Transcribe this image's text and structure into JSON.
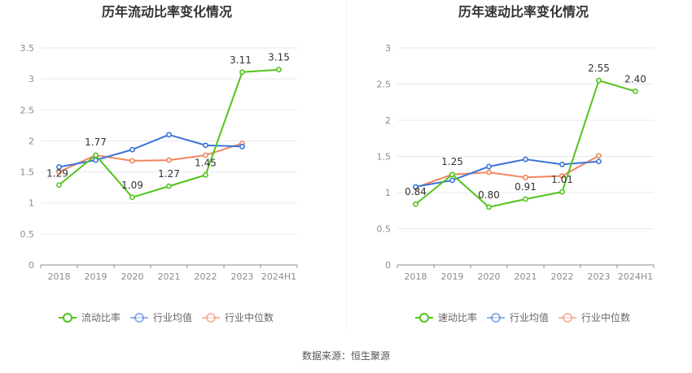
{
  "source_label": "数据来源：恒生聚源",
  "colors": {
    "main": "#52c41a",
    "avg": "#3b73d9",
    "median": "#f0865c",
    "grid": "#e6e9ef",
    "axis": "#8c8c8c"
  },
  "chart_data": [
    {
      "type": "line",
      "title": "历年流动比率变化情况",
      "categories": [
        "2018",
        "2019",
        "2020",
        "2021",
        "2022",
        "2023",
        "2024H1"
      ],
      "ylim": [
        0,
        3.5
      ],
      "yticks": [
        "0",
        "0.5",
        "1",
        "1.5",
        "2",
        "2.5",
        "3",
        "3.5"
      ],
      "grid": true,
      "legend_position": "bottom",
      "series": [
        {
          "name": "流动比率",
          "key": "main",
          "values": [
            1.29,
            1.77,
            1.09,
            1.27,
            1.45,
            3.11,
            3.15
          ],
          "labels": [
            "1.29",
            "1.77",
            "1.09",
            "1.27",
            "1.45",
            "3.11",
            "3.15"
          ]
        },
        {
          "name": "行业均值",
          "key": "avg",
          "values": [
            1.58,
            1.69,
            1.86,
            2.1,
            1.93,
            1.91,
            null
          ]
        },
        {
          "name": "行业中位数",
          "key": "median",
          "values": [
            1.5,
            1.77,
            1.68,
            1.69,
            1.77,
            1.96,
            null
          ]
        }
      ]
    },
    {
      "type": "line",
      "title": "历年速动比率变化情况",
      "categories": [
        "2018",
        "2019",
        "2020",
        "2021",
        "2022",
        "2023",
        "2024H1"
      ],
      "ylim": [
        0,
        3
      ],
      "yticks": [
        "0",
        "0.5",
        "1",
        "1.5",
        "2",
        "2.5",
        "3"
      ],
      "grid": true,
      "legend_position": "bottom",
      "series": [
        {
          "name": "速动比率",
          "key": "main",
          "values": [
            0.84,
            1.25,
            0.8,
            0.91,
            1.01,
            2.55,
            2.4
          ],
          "labels": [
            "0.84",
            "1.25",
            "0.80",
            "0.91",
            "1.01",
            "2.55",
            "2.40"
          ]
        },
        {
          "name": "行业均值",
          "key": "avg",
          "values": [
            1.08,
            1.17,
            1.36,
            1.46,
            1.39,
            1.43,
            null
          ]
        },
        {
          "name": "行业中位数",
          "key": "median",
          "values": [
            1.07,
            1.25,
            1.28,
            1.21,
            1.23,
            1.51,
            null
          ]
        }
      ]
    }
  ]
}
